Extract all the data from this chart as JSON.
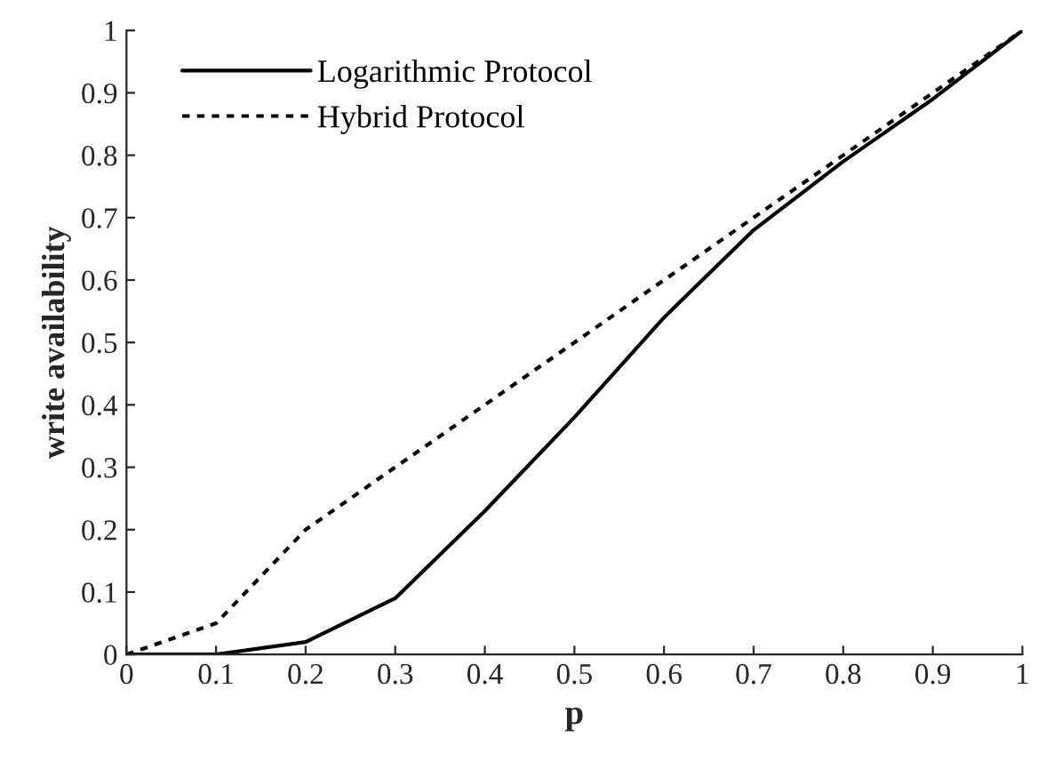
{
  "chart_data": {
    "type": "line",
    "xlabel": "p",
    "ylabel": "write availability",
    "x": [
      0,
      0.1,
      0.2,
      0.3,
      0.4,
      0.5,
      0.6,
      0.7,
      0.8,
      0.9,
      1
    ],
    "series": [
      {
        "name": "Logarithmic Protocol",
        "color": "#000000",
        "line_style": "solid",
        "values": [
          0,
          0,
          0.02,
          0.09,
          0.23,
          0.38,
          0.54,
          0.68,
          0.79,
          0.89,
          1
        ]
      },
      {
        "name": "Hybrid Protocol",
        "color": "#000000",
        "line_style": "dotted",
        "values": [
          0,
          0.05,
          0.2,
          0.3,
          0.4,
          0.5,
          0.6,
          0.7,
          0.8,
          0.9,
          1
        ]
      }
    ],
    "xlim": [
      0,
      1
    ],
    "ylim": [
      0,
      1
    ],
    "xticks": [
      0,
      0.1,
      0.2,
      0.3,
      0.4,
      0.5,
      0.6,
      0.7,
      0.8,
      0.9,
      1
    ],
    "yticks": [
      0,
      0.1,
      0.2,
      0.3,
      0.4,
      0.5,
      0.6,
      0.7,
      0.8,
      0.9,
      1
    ],
    "grid": false,
    "legend": "top left",
    "marker": "none"
  }
}
